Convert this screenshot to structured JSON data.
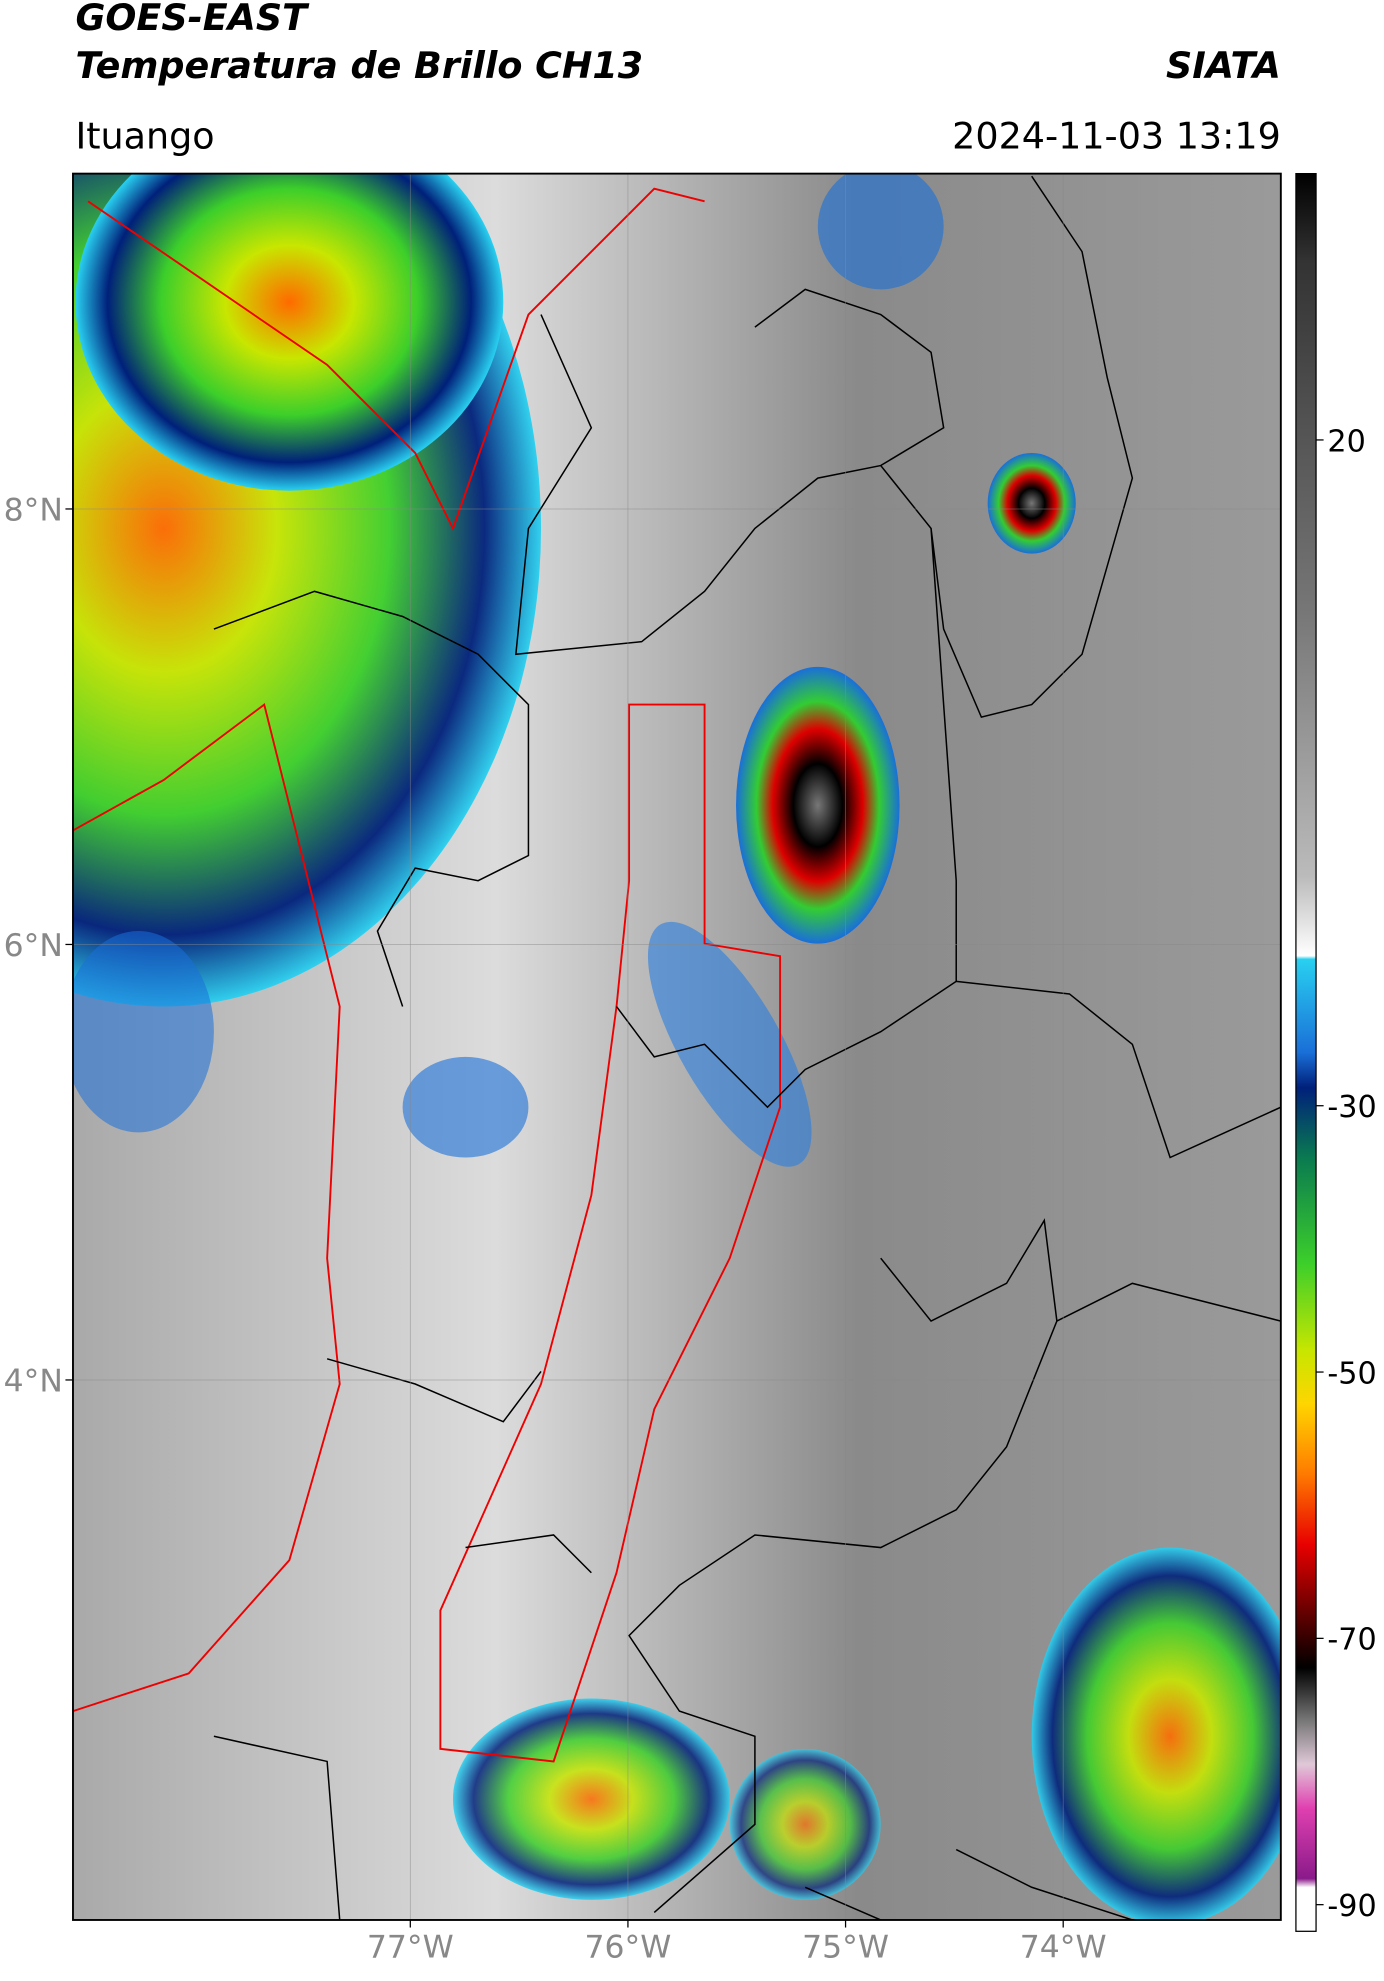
{
  "header": {
    "satellite": "GOES-EAST",
    "product": "Temperatura de Brillo CH13",
    "organization": "SIATA",
    "location": "Ituango",
    "timestamp": "2024-11-03 13:19"
  },
  "map": {
    "xlim": [
      -78.55,
      -73.0
    ],
    "ylim": [
      1.52,
      9.54
    ],
    "xticks": [
      {
        "value": -77,
        "label": "77°W"
      },
      {
        "value": -76,
        "label": "76°W"
      },
      {
        "value": -75,
        "label": "75°W"
      },
      {
        "value": -74,
        "label": "74°W"
      }
    ],
    "yticks": [
      {
        "value": 4,
        "label": "4°N"
      },
      {
        "value": 6,
        "label": "6°N"
      },
      {
        "value": 8,
        "label": "8°N"
      }
    ],
    "grid": true
  },
  "colorbar": {
    "lim": [
      -92,
      40
    ],
    "ticks": [
      -90,
      -70,
      -50,
      -30,
      20
    ]
  }
}
